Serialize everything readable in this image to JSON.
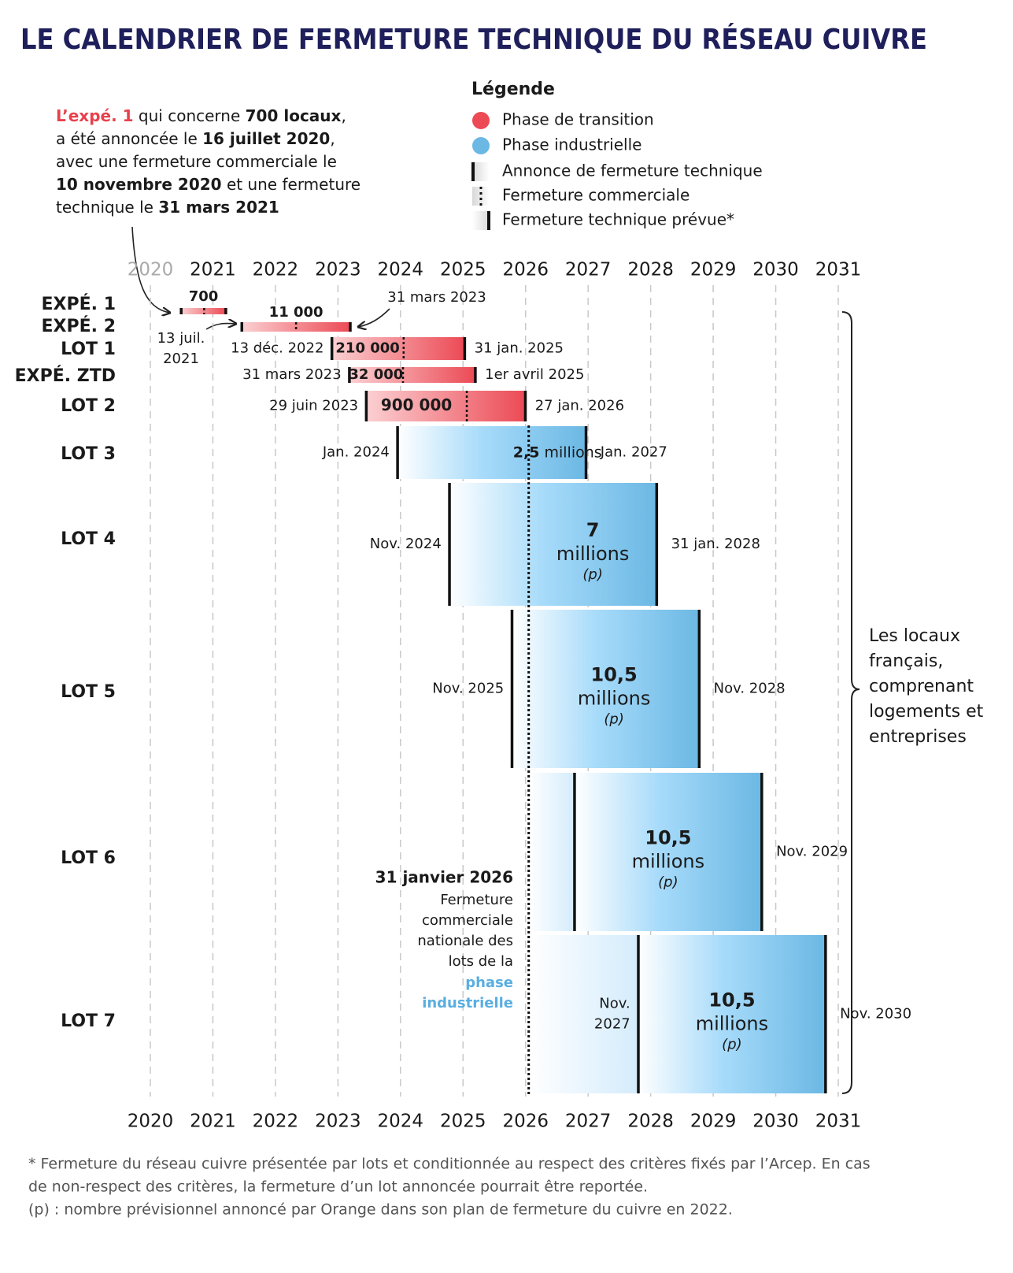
{
  "chart_data": {
    "type": "gantt",
    "title": "LE CALENDRIER DE FERMETURE TECHNIQUE DU RÉSEAU CUIVRE",
    "xlim": [
      2020,
      2031
    ],
    "xticks": [
      2020,
      2021,
      2022,
      2023,
      2024,
      2025,
      2026,
      2027,
      2028,
      2029,
      2030,
      2031
    ],
    "grid": true,
    "legend": {
      "title": "Légende",
      "items": [
        {
          "name": "Phase de transition",
          "color": "#ec4a55"
        },
        {
          "name": "Phase industrielle",
          "color": "#6bb8e4"
        },
        {
          "name": "Annonce de fermeture technique"
        },
        {
          "name": "Fermeture commerciale"
        },
        {
          "name": "Fermeture technique prévue*"
        }
      ]
    },
    "annotation": {
      "lines": [
        [
          "L’expé. 1",
          " qui concerne ",
          "700 locaux",
          ","
        ],
        [
          "a été annoncée le ",
          "16 juillet 2020",
          ","
        ],
        [
          "avec une fermeture commerciale le"
        ],
        [
          "10 novembre 2020",
          " et une fermeture"
        ],
        [
          "technique le ",
          "31 mars 2021"
        ]
      ]
    },
    "rows": [
      {
        "label": "EXPÉ. 1",
        "phase": "transition",
        "start": 2020.49,
        "commercial": 2020.86,
        "end": 2021.21,
        "value_label": "700"
      },
      {
        "label": "EXPÉ. 2",
        "phase": "transition",
        "start": 2021.46,
        "commercial": 2022.33,
        "end": 2023.2,
        "value_label": "11 000",
        "start_label": [
          "13 juil.",
          "2021"
        ],
        "end_label": [
          "31 mars 2023"
        ]
      },
      {
        "label": "LOT 1",
        "phase": "transition",
        "start": 2022.9,
        "commercial": 2024.05,
        "end": 2025.03,
        "value_label": "210 000",
        "start_label": [
          "13 déc. 2022"
        ],
        "end_label": [
          "31 jan. 2025"
        ]
      },
      {
        "label": "EXPÉ. ZTD",
        "phase": "transition",
        "start": 2023.18,
        "commercial": 2024.04,
        "end": 2025.2,
        "value_label": "32 000",
        "start_label": [
          "31 mars 2023"
        ],
        "end_label": [
          "1er avril 2025"
        ]
      },
      {
        "label": "LOT 2",
        "phase": "transition",
        "start": 2023.45,
        "commercial": 2025.06,
        "end": 2026.0,
        "value_label": "900 000",
        "start_label": [
          "29 juin 2023"
        ],
        "end_label": [
          "27 jan. 2026"
        ]
      },
      {
        "label": "LOT 3",
        "phase": "industrial",
        "start": 2023.95,
        "end": 2026.97,
        "value_label": "2,5",
        "unit": "millions",
        "start_label": [
          "Jan. 2024"
        ],
        "end_label": [
          "Jan. 2027"
        ]
      },
      {
        "label": "LOT 4",
        "phase": "industrial",
        "start": 2024.78,
        "end": 2028.1,
        "value_label": "7",
        "unit": "millions",
        "note": "(p)",
        "start_label": [
          "Nov. 2024"
        ],
        "end_label": [
          "31 jan. 2028"
        ]
      },
      {
        "label": "LOT 5",
        "phase": "industrial",
        "start": 2025.78,
        "end": 2028.78,
        "value_label": "10,5",
        "unit": "millions",
        "note": "(p)",
        "start_label": [
          "Nov. 2025"
        ],
        "end_label": [
          "Nov. 2028"
        ]
      },
      {
        "label": "LOT 6",
        "phase": "industrial",
        "start": 2026.78,
        "end": 2029.78,
        "value_label": "10,5",
        "unit": "millions",
        "note": "(p)",
        "end_label": [
          "Nov. 2029"
        ]
      },
      {
        "label": "LOT 7",
        "phase": "industrial",
        "start": 2027.8,
        "end": 2030.8,
        "value_label": "10,5",
        "unit": "millions",
        "note": "(p)",
        "start_label": [
          "Nov.",
          "2027"
        ],
        "end_label": [
          "Nov. 2030"
        ]
      }
    ],
    "national_closure": {
      "value": 2026.05,
      "date": "31 janvier 2026",
      "lines": [
        "Fermeture",
        "commerciale",
        "nationale des",
        "lots de la"
      ],
      "highlight": [
        "phase",
        "industrielle"
      ]
    },
    "brace_label": {
      "lines": [
        "Les locaux",
        "français,",
        "comprenant",
        "logements et",
        "entreprises"
      ]
    },
    "footnotes": [
      "* Fermeture du réseau cuivre présentée par lots et conditionnée au respect des critères fixés par l’Arcep. En cas",
      "de non-respect des critères, la fermeture d’un lot annoncée pourrait être reportée.",
      "(p) : nombre prévisionnel annoncé par Orange dans son plan de fermeture du cuivre en 2022."
    ]
  }
}
